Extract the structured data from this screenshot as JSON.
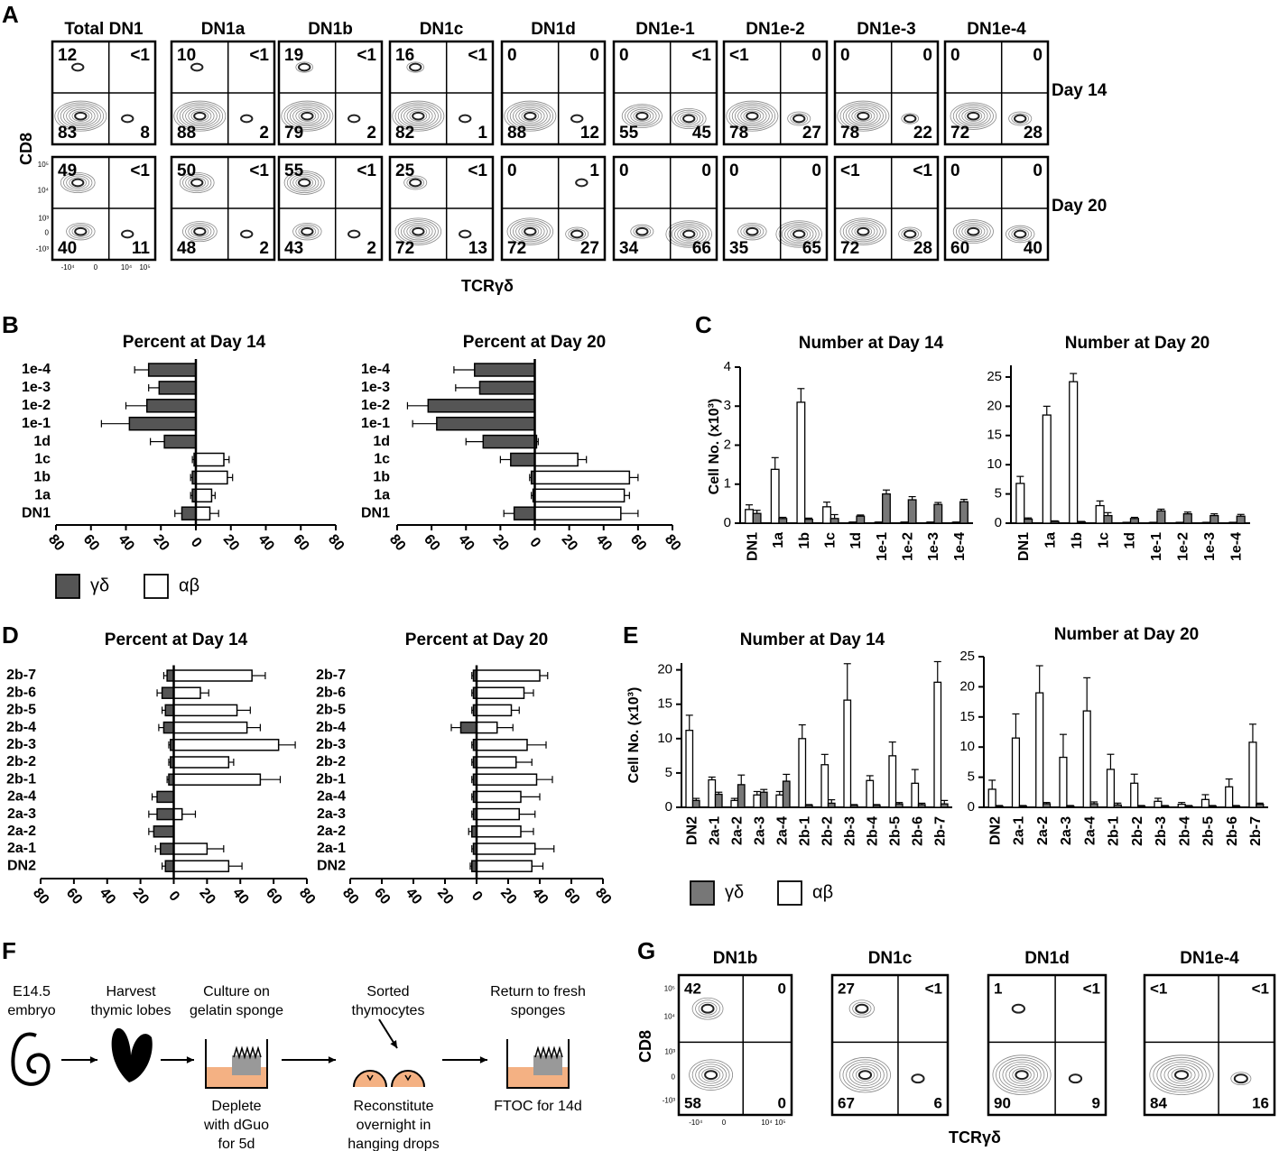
{
  "panel_labels": [
    "A",
    "B",
    "C",
    "D",
    "E",
    "F",
    "G"
  ],
  "panel_a": {
    "columns": [
      "Total DN1",
      "DN1a",
      "DN1b",
      "DN1c",
      "DN1d",
      "DN1e-1",
      "DN1e-2",
      "DN1e-3",
      "DN1e-4"
    ],
    "rows": [
      {
        "label": "Day 14",
        "quadrants": [
          [
            12,
            "<1",
            83,
            8
          ],
          [
            10,
            "<1",
            88,
            2
          ],
          [
            19,
            "<1",
            79,
            2
          ],
          [
            16,
            "<1",
            82,
            1
          ],
          [
            0,
            0,
            88,
            12
          ],
          [
            0,
            "<1",
            55,
            45
          ],
          [
            "<1",
            0,
            78,
            27
          ],
          [
            0,
            0,
            78,
            22
          ],
          [
            0,
            0,
            72,
            28
          ]
        ]
      },
      {
        "label": "Day 20",
        "quadrants": [
          [
            49,
            "<1",
            40,
            11
          ],
          [
            50,
            "<1",
            48,
            2
          ],
          [
            55,
            "<1",
            43,
            2
          ],
          [
            25,
            "<1",
            72,
            13
          ],
          [
            0,
            1,
            72,
            27
          ],
          [
            0,
            0,
            34,
            66
          ],
          [
            0,
            0,
            35,
            65
          ],
          [
            "<1",
            "<1",
            72,
            28
          ],
          [
            0,
            0,
            60,
            40
          ]
        ]
      }
    ],
    "y_label": "CD8",
    "x_label": "TCRγδ",
    "y_ticks": [
      "10⁵",
      "10⁴",
      "10³",
      "0",
      "-10³"
    ],
    "x_ticks": [
      "-10⁴",
      "0",
      "10⁴",
      "10⁵"
    ]
  },
  "chart_data": [
    {
      "type": "bar",
      "orientation": "horizontal",
      "title": "Percent at Day 14",
      "categories": [
        "1e-4",
        "1e-3",
        "1e-2",
        "1e-1",
        "1d",
        "1c",
        "1b",
        "1a",
        "DN1"
      ],
      "series": [
        {
          "name": "γδ",
          "color": "#555555",
          "values": [
            -27,
            -21,
            -28,
            -38,
            -18,
            -1,
            -2,
            -2,
            -8
          ],
          "errors": [
            8,
            6,
            12,
            16,
            8,
            1,
            1,
            1,
            4
          ]
        },
        {
          "name": "αβ",
          "color": "#ffffff",
          "values": [
            0,
            0,
            0,
            0,
            0,
            16,
            18,
            9,
            8
          ],
          "errors": [
            0,
            0,
            0,
            0,
            0,
            3,
            3,
            2,
            5
          ]
        }
      ],
      "xlim": [
        -80,
        80
      ],
      "xticks": [
        {
          "value": -80,
          "label": "80"
        },
        {
          "value": -60,
          "label": "60"
        },
        {
          "value": -40,
          "label": "40"
        },
        {
          "value": -20,
          "label": "20"
        },
        0,
        20,
        40,
        60,
        80
      ]
    },
    {
      "type": "bar",
      "orientation": "horizontal",
      "title": "Percent at Day 20",
      "categories": [
        "1e-4",
        "1e-3",
        "1e-2",
        "1e-1",
        "1d",
        "1c",
        "1b",
        "1a",
        "DN1"
      ],
      "series": [
        {
          "color": "#555555",
          "values": [
            -35,
            -32,
            -62,
            -57,
            -30,
            -14,
            -2,
            -1,
            -12
          ],
          "errors": [
            12,
            14,
            12,
            14,
            10,
            6,
            1,
            1,
            6
          ]
        },
        {
          "color": "#ffffff",
          "values": [
            0,
            0,
            0,
            0,
            1,
            25,
            55,
            52,
            50
          ],
          "errors": [
            0,
            0,
            0,
            0,
            1,
            5,
            5,
            3,
            10
          ]
        }
      ],
      "xlim": [
        -80,
        80
      ],
      "xticks": [
        {
          "value": -80,
          "label": "80"
        },
        {
          "value": -60,
          "label": "60"
        },
        {
          "value": -40,
          "label": "40"
        },
        {
          "value": -20,
          "label": "20"
        },
        0,
        20,
        40,
        60,
        80
      ]
    },
    {
      "type": "bar",
      "orientation": "vertical",
      "title": "Number at Day 14",
      "ylabel": "Cell No. (x10³)",
      "categories": [
        "DN1",
        "1a",
        "1b",
        "1c",
        "1d",
        "1e-1",
        "1e-2",
        "1e-3",
        "1e-4"
      ],
      "series": [
        {
          "color": "#ffffff",
          "values": [
            0.35,
            1.38,
            3.1,
            0.42,
            0.02,
            0.02,
            0.02,
            0.02,
            0.02
          ],
          "errors": [
            0.12,
            0.3,
            0.35,
            0.12,
            0.01,
            0.01,
            0.01,
            0.01,
            0.01
          ]
        },
        {
          "color": "#777777",
          "values": [
            0.25,
            0.12,
            0.1,
            0.12,
            0.18,
            0.75,
            0.6,
            0.48,
            0.55
          ],
          "errors": [
            0.08,
            0.03,
            0.03,
            0.1,
            0.03,
            0.1,
            0.08,
            0.05,
            0.06
          ]
        }
      ],
      "ylim": [
        0,
        4
      ],
      "yticks": [
        0,
        1,
        2,
        3,
        4
      ]
    },
    {
      "type": "bar",
      "orientation": "vertical",
      "title": "Number at Day 20",
      "categories": [
        "DN1",
        "1a",
        "1b",
        "1c",
        "1d",
        "1e-1",
        "1e-2",
        "1e-3",
        "1e-4"
      ],
      "series": [
        {
          "color": "#ffffff",
          "values": [
            6.8,
            18.5,
            24.2,
            3.0,
            0.1,
            0.1,
            0.1,
            0.1,
            0.1
          ],
          "errors": [
            1.2,
            1.5,
            1.4,
            0.8,
            0.05,
            0.05,
            0.05,
            0.05,
            0.05
          ]
        },
        {
          "color": "#777777",
          "values": [
            0.7,
            0.3,
            0.2,
            1.3,
            0.8,
            2.1,
            1.6,
            1.3,
            1.2
          ],
          "errors": [
            0.2,
            0.1,
            0.1,
            0.5,
            0.2,
            0.3,
            0.3,
            0.3,
            0.3
          ]
        }
      ],
      "ylim": [
        0,
        27
      ],
      "yticks": [
        0,
        5,
        10,
        15,
        20,
        25
      ]
    },
    {
      "type": "bar",
      "orientation": "horizontal",
      "title": "Percent at Day 14",
      "categories": [
        "2b-7",
        "2b-6",
        "2b-5",
        "2b-4",
        "2b-3",
        "2b-2",
        "2b-1",
        "2a-4",
        "2a-3",
        "2a-2",
        "2a-1",
        "DN2"
      ],
      "series": [
        {
          "color": "#555555",
          "values": [
            -4,
            -7,
            -5,
            -6,
            -2,
            -2,
            -3,
            -10,
            -10,
            -12,
            -8,
            -5
          ],
          "errors": [
            2,
            3,
            2,
            3,
            1,
            1,
            1,
            3,
            5,
            3,
            3,
            2
          ]
        },
        {
          "color": "#ffffff",
          "values": [
            47,
            16,
            38,
            44,
            63,
            33,
            52,
            0,
            5,
            0,
            20,
            33
          ],
          "errors": [
            8,
            5,
            8,
            8,
            10,
            3,
            12,
            0,
            8,
            0,
            10,
            8
          ]
        }
      ],
      "xlim": [
        -80,
        80
      ],
      "xticks": [
        {
          "value": -80,
          "label": "80"
        },
        {
          "value": -60,
          "label": "60"
        },
        {
          "value": -40,
          "label": "40"
        },
        {
          "value": -20,
          "label": "20"
        },
        0,
        20,
        40,
        60,
        80
      ]
    },
    {
      "type": "bar",
      "orientation": "horizontal",
      "title": "Percent at Day 20",
      "categories": [
        "2b-7",
        "2b-6",
        "2b-5",
        "2b-4",
        "2b-3",
        "2b-2",
        "2b-1",
        "2a-4",
        "2a-3",
        "2a-2",
        "2a-1",
        "DN2"
      ],
      "series": [
        {
          "color": "#555555",
          "values": [
            -2,
            -2,
            -2,
            -10,
            -2,
            -2,
            -2,
            -2,
            -2,
            -3,
            -2,
            -3
          ],
          "errors": [
            1,
            1,
            1,
            6,
            1,
            1,
            1,
            1,
            1,
            2,
            1,
            1
          ]
        },
        {
          "color": "#ffffff",
          "values": [
            40,
            30,
            22,
            13,
            32,
            25,
            38,
            28,
            27,
            28,
            37,
            35
          ],
          "errors": [
            5,
            6,
            5,
            10,
            12,
            10,
            10,
            12,
            10,
            8,
            12,
            7
          ]
        }
      ],
      "xlim": [
        -80,
        80
      ],
      "xticks": [
        {
          "value": -80,
          "label": "80"
        },
        {
          "value": -60,
          "label": "60"
        },
        {
          "value": -40,
          "label": "40"
        },
        {
          "value": -20,
          "label": "20"
        },
        0,
        20,
        40,
        60,
        80
      ]
    },
    {
      "type": "bar",
      "orientation": "vertical",
      "title": "Number at Day 14",
      "ylabel": "Cell No. (x10³)",
      "categories": [
        "DN2",
        "2a-1",
        "2a-2",
        "2a-3",
        "2a-4",
        "2b-1",
        "2b-2",
        "2b-3",
        "2b-4",
        "2b-5",
        "2b-6",
        "2b-7"
      ],
      "series": [
        {
          "name": "αβ",
          "color": "#ffffff",
          "values": [
            11.2,
            4.0,
            1.0,
            1.8,
            1.8,
            10.0,
            6.2,
            15.6,
            3.9,
            7.5,
            3.5,
            18.2
          ],
          "errors": [
            2.2,
            0.4,
            0.3,
            0.5,
            0.5,
            2.0,
            1.5,
            5.3,
            0.7,
            2.0,
            2.0,
            3.0
          ]
        },
        {
          "name": "γδ",
          "color": "#777777",
          "values": [
            1.0,
            1.9,
            3.3,
            2.2,
            3.8,
            0.3,
            0.6,
            0.3,
            0.3,
            0.5,
            0.4,
            0.5
          ],
          "errors": [
            0.3,
            0.3,
            1.4,
            0.4,
            1.0,
            0.1,
            0.5,
            0.1,
            0.1,
            0.2,
            0.2,
            0.5
          ]
        }
      ],
      "ylim": [
        0,
        21
      ],
      "yticks": [
        0,
        5,
        10,
        15,
        20
      ]
    },
    {
      "type": "bar",
      "orientation": "vertical",
      "title": "Number at Day 20",
      "categories": [
        "DN2",
        "2a-1",
        "2a-2",
        "2a-3",
        "2a-4",
        "2b-1",
        "2b-2",
        "2b-3",
        "2b-4",
        "2b-5",
        "2b-6",
        "2b-7"
      ],
      "series": [
        {
          "color": "#ffffff",
          "values": [
            3.0,
            11.5,
            19.0,
            8.3,
            16.0,
            6.3,
            4.0,
            1.0,
            0.5,
            1.3,
            3.4,
            10.8
          ],
          "errors": [
            1.5,
            4.0,
            4.5,
            3.8,
            5.5,
            2.5,
            1.5,
            0.5,
            0.3,
            0.8,
            1.3,
            3.0
          ]
        },
        {
          "color": "#777777",
          "values": [
            0.2,
            0.2,
            0.6,
            0.2,
            0.6,
            0.4,
            0.2,
            0.2,
            0.2,
            0.2,
            0.2,
            0.5
          ],
          "errors": [
            0.1,
            0.1,
            0.2,
            0.1,
            0.3,
            0.3,
            0.1,
            0.1,
            0.1,
            0.1,
            0.1,
            0.2
          ]
        }
      ],
      "ylim": [
        0,
        25
      ],
      "yticks": [
        0,
        5,
        10,
        15,
        20,
        25
      ]
    }
  ],
  "panel_f": {
    "steps": [
      {
        "top": [
          "E14.5",
          "embryo"
        ]
      },
      {
        "top": [
          "Harvest",
          "thymic lobes"
        ]
      },
      {
        "top": [
          "Culture on",
          "gelatin sponge"
        ],
        "bottom": [
          "Deplete",
          "with dGuo",
          "for 5d"
        ]
      },
      {
        "top": [
          "Sorted",
          "thymocytes"
        ],
        "bottom": [
          "Reconstitute",
          "overnight in",
          "hanging drops"
        ]
      },
      {
        "top": [
          "Return to fresh",
          "sponges"
        ],
        "bottom": [
          "FTOC for 14d"
        ]
      }
    ]
  },
  "panel_g": {
    "plots": [
      {
        "title": "DN1b",
        "quadrants": [
          42,
          0,
          58,
          0
        ]
      },
      {
        "title": "DN1c",
        "quadrants": [
          27,
          "<1",
          67,
          6
        ]
      },
      {
        "title": "DN1d",
        "quadrants": [
          1,
          "<1",
          90,
          9
        ]
      },
      {
        "title": "DN1e-4",
        "quadrants": [
          "<1",
          "<1",
          84,
          16
        ]
      }
    ],
    "y_label": "CD8",
    "x_label": "TCRγδ",
    "y_ticks": [
      "10⁵",
      "10⁴",
      "10³",
      "0",
      "-10³"
    ],
    "x_ticks": [
      "-10⁴",
      "0",
      "10⁴",
      "10⁵"
    ]
  }
}
